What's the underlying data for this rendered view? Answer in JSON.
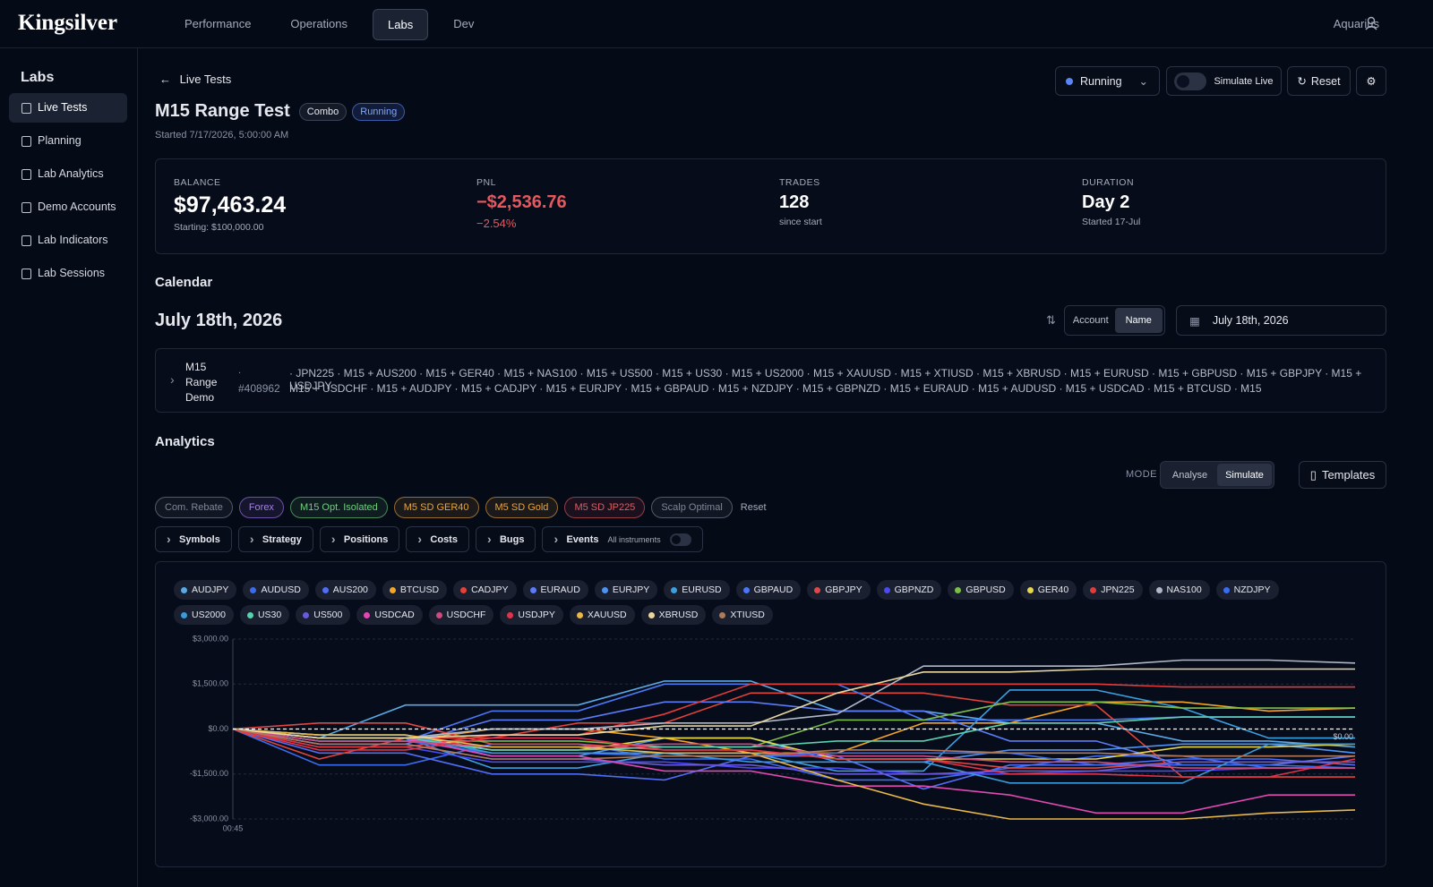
{
  "nav": {
    "brand": "Kingsilver",
    "tabs": [
      "Performance",
      "Operations",
      "Labs",
      "Dev"
    ],
    "active": 2,
    "user": "Aquarius"
  },
  "sidebar": {
    "title": "Labs",
    "items": [
      "Live Tests",
      "Planning",
      "Lab Analytics",
      "Demo Accounts",
      "Lab Indicators",
      "Lab Sessions"
    ],
    "active": 0
  },
  "header": {
    "back": "Live Tests",
    "title": "M15 Range Test",
    "badges": [
      "Combo",
      "Running"
    ],
    "started": "Started 7/17/2026, 5:00:00 AM",
    "status": "Running",
    "simulate": "Simulate Live",
    "reset": "Reset"
  },
  "stats": [
    {
      "label": "BALANCE",
      "value": "$97,463.24",
      "sub": "Starting: $100,000.00"
    },
    {
      "label": "PNL",
      "value": "−$2,536.76",
      "sub": "−2.54%"
    },
    {
      "label": "TRADES",
      "value": "128",
      "sub": "since start"
    },
    {
      "label": "DURATION",
      "value": "Day 2",
      "sub": "Started 17-Jul"
    }
  ],
  "calendar": {
    "heading": "Calendar",
    "date": "July 18th, 2026",
    "sort": [
      "Account",
      "Name"
    ],
    "sort_active": 1,
    "picker": "July 18th, 2026",
    "row": {
      "name": "M15 Range Demo",
      "dot": ".",
      "id": "#408962",
      "symbols": [
        "· JPN225 · M15 + AUS200 · M15 + GER40 · M15 + NAS100 · M15 + US500 · M15 + US30 · M15 + US2000 · M15 + XAUUSD · M15 + XTIUSD · M15 + XBRUSD · M15 + EURUSD · M15 + GBPUSD · M15 + GBPJPY · M15 + USDJPY ·",
        "M15 + USDCHF · M15 + AUDJPY · M15 + CADJPY · M15 + EURJPY · M15 + GBPAUD · M15 + NZDJPY · M15 + GBPNZD · M15 + EURAUD · M15 + AUDUSD · M15 + USDCAD · M15 + BTCUSD · M15"
      ]
    }
  },
  "analytics": {
    "heading": "Analytics",
    "mode_label": "MODE",
    "modes": [
      "Analyse",
      "Simulate"
    ],
    "mode_active": 1,
    "templates": "Templates",
    "presets": [
      {
        "name": "Com. Rebate",
        "color": "#7f8797"
      },
      {
        "name": "Forex",
        "color": "#a97cf5"
      },
      {
        "name": "M15 Opt. Isolated",
        "color": "#6fd07e"
      },
      {
        "name": "M5 SD GER40",
        "color": "#e9a53c"
      },
      {
        "name": "M5 SD Gold",
        "color": "#e9a53c"
      },
      {
        "name": "M5 SD JP225",
        "color": "#e35b5e"
      },
      {
        "name": "Scalp Optimal",
        "color": "#7f8797"
      }
    ],
    "reset": "Reset",
    "filters": [
      "Symbols",
      "Strategy",
      "Positions",
      "Costs",
      "Bugs",
      "Events"
    ],
    "events_sub": "All instruments"
  },
  "chart_data": {
    "type": "line",
    "categories": [
      "00:45",
      null,
      null,
      null,
      null,
      null,
      null,
      null,
      null,
      null,
      null,
      null,
      null,
      null
    ],
    "ylim": [
      -3000,
      3000
    ],
    "yticks": [
      {
        "value": 3000,
        "label": "$3,000.00"
      },
      {
        "value": 1500,
        "label": "$1,500.00"
      },
      {
        "value": 0,
        "label": "$0.00"
      },
      {
        "value": -1500,
        "label": "-$1,500.00"
      },
      {
        "value": -3000,
        "label": "-$3,000.00"
      }
    ],
    "grid": true,
    "annotation": "$0.00",
    "series": [
      {
        "name": "AUDJPY",
        "color": "#5aa9e6",
        "values": [
          0,
          -300,
          800,
          800,
          800,
          1600,
          1600,
          600,
          600,
          200,
          200,
          -400,
          -400,
          -600
        ]
      },
      {
        "name": "AUDUSD",
        "color": "#3b6cf0",
        "values": [
          0,
          -1200,
          -1200,
          -500,
          -500,
          -1000,
          -1000,
          -1700,
          -1700,
          -1300,
          -900,
          -900,
          -1300,
          -1300
        ]
      },
      {
        "name": "AUS200",
        "color": "#4f6df5",
        "values": [
          0,
          -800,
          -800,
          -1500,
          -1500,
          -1700,
          -900,
          -900,
          -2000,
          -1200,
          -1200,
          -1000,
          -1000,
          -1200
        ]
      },
      {
        "name": "BTCUSD",
        "color": "#f5a623",
        "values": [
          0,
          -400,
          -400,
          0,
          0,
          -300,
          -800,
          -800,
          200,
          200,
          900,
          900,
          600,
          700
        ]
      },
      {
        "name": "CADJPY",
        "color": "#e0433a",
        "values": [
          0,
          -1000,
          -300,
          -300,
          200,
          200,
          1200,
          1200,
          1200,
          800,
          800,
          -1600,
          -1600,
          -1600
        ]
      },
      {
        "name": "EURAUD",
        "color": "#5b7cf7",
        "values": [
          0,
          -500,
          -500,
          300,
          300,
          900,
          900,
          600,
          600,
          -400,
          -400,
          -1200,
          -1200,
          -900
        ]
      },
      {
        "name": "EURJPY",
        "color": "#4f93f0",
        "values": [
          0,
          -200,
          -200,
          -900,
          -900,
          -300,
          -300,
          -1100,
          -1100,
          -700,
          -700,
          -500,
          -500,
          -800
        ]
      },
      {
        "name": "EURUSD",
        "color": "#3aa0e0",
        "values": [
          0,
          -300,
          -300,
          -1300,
          -1300,
          -800,
          -800,
          -1400,
          -1400,
          1300,
          1300,
          700,
          -300,
          -300
        ]
      },
      {
        "name": "GBPAUD",
        "color": "#4a78f5",
        "values": [
          0,
          -400,
          -400,
          600,
          600,
          1500,
          1500,
          1500,
          300,
          300,
          300,
          400,
          400,
          400
        ]
      },
      {
        "name": "GBPJPY",
        "color": "#e04848",
        "values": [
          0,
          200,
          200,
          -500,
          -500,
          -700,
          -700,
          -1000,
          -1000,
          -1300,
          -1300,
          -1100,
          -1100,
          -1100
        ]
      },
      {
        "name": "GBPNZD",
        "color": "#4a4af0",
        "values": [
          0,
          -600,
          -600,
          -1100,
          -1100,
          -1100,
          -1300,
          -1300,
          -1500,
          -1500,
          -1400,
          -1400,
          -1300,
          -1300
        ]
      },
      {
        "name": "GBPUSD",
        "color": "#7bbf4a",
        "values": [
          0,
          -400,
          -400,
          -400,
          -400,
          -600,
          -600,
          300,
          300,
          900,
          900,
          700,
          700,
          700
        ]
      },
      {
        "name": "GER40",
        "color": "#e6d84a",
        "values": [
          0,
          -200,
          -200,
          -700,
          -700,
          -300,
          -300,
          -1000,
          -1000,
          -1000,
          -1000,
          -600,
          -600,
          -500
        ]
      },
      {
        "name": "JPN225",
        "color": "#e33b3b",
        "values": [
          0,
          -600,
          -600,
          -200,
          -200,
          500,
          1500,
          1500,
          1500,
          1500,
          1500,
          1400,
          1400,
          1400
        ]
      },
      {
        "name": "NAS100",
        "color": "#b0b8c8",
        "values": [
          0,
          -300,
          -300,
          0,
          0,
          200,
          200,
          500,
          2100,
          2100,
          2100,
          2300,
          2300,
          2200
        ]
      },
      {
        "name": "NZDJPY",
        "color": "#3a6cf0",
        "values": [
          0,
          -400,
          -400,
          -800,
          -800,
          -900,
          -900,
          -800,
          -800,
          -800,
          -1200,
          -1200,
          -1200,
          -1300
        ]
      },
      {
        "name": "US2000",
        "color": "#3b9ad9",
        "values": [
          0,
          -200,
          -200,
          -800,
          -800,
          -800,
          -1100,
          -1100,
          -1100,
          -1800,
          -1800,
          -1800,
          -500,
          -500
        ]
      },
      {
        "name": "US30",
        "color": "#5ad0b0",
        "values": [
          0,
          -300,
          -300,
          -700,
          -700,
          -600,
          -600,
          -400,
          -400,
          200,
          200,
          400,
          400,
          400
        ]
      },
      {
        "name": "US500",
        "color": "#6a5ad8",
        "values": [
          0,
          -500,
          -500,
          -1000,
          -1000,
          -1200,
          -1200,
          -1500,
          -1500,
          -1400,
          -1400,
          -1100,
          -1100,
          -1100
        ]
      },
      {
        "name": "USDCAD",
        "color": "#e04ab0",
        "values": [
          0,
          -300,
          -300,
          -900,
          -900,
          -1400,
          -1400,
          -1900,
          -1900,
          -2200,
          -2800,
          -2800,
          -2200,
          -2200
        ]
      },
      {
        "name": "USDCHF",
        "color": "#d04a80",
        "values": [
          0,
          -400,
          -400,
          -600,
          -600,
          -500,
          -500,
          -900,
          -900,
          -1100,
          -1100,
          -1300,
          -1300,
          -1300
        ]
      },
      {
        "name": "USDJPY",
        "color": "#e0344a",
        "values": [
          0,
          -700,
          -700,
          -300,
          -300,
          -700,
          -700,
          -1000,
          -1000,
          -1500,
          -1500,
          -1600,
          -1600,
          -1000
        ]
      },
      {
        "name": "XAUUSD",
        "color": "#e8b84a",
        "values": [
          0,
          -200,
          -200,
          -600,
          -600,
          -800,
          -800,
          -1700,
          -2500,
          -3000,
          -3000,
          -3000,
          -2800,
          -2700
        ]
      },
      {
        "name": "XBRUSD",
        "color": "#e8d8a0",
        "values": [
          0,
          -300,
          -300,
          -200,
          -200,
          100,
          100,
          1200,
          1900,
          1900,
          2000,
          2000,
          2000,
          2000
        ]
      },
      {
        "name": "XTIUSD",
        "color": "#b07a5a",
        "values": [
          0,
          -500,
          -500,
          -1000,
          -1000,
          -900,
          -900,
          -700,
          -700,
          -800,
          -800,
          -900,
          -900,
          -900
        ]
      }
    ]
  }
}
